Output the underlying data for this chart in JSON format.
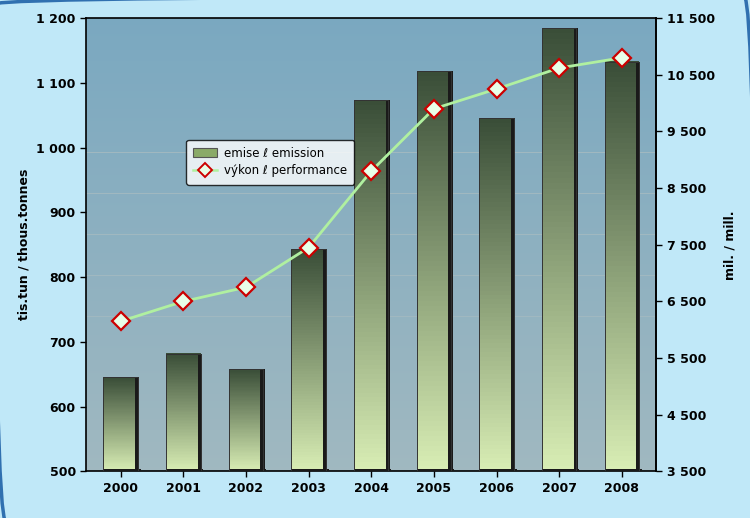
{
  "years": [
    2000,
    2001,
    2002,
    2003,
    2004,
    2005,
    2006,
    2007,
    2008
  ],
  "emissions": [
    645,
    682,
    658,
    843,
    1073,
    1118,
    1045,
    1185,
    1133
  ],
  "performance": [
    6150,
    6500,
    6750,
    7450,
    8800,
    9900,
    10250,
    10620,
    10800
  ],
  "bar_color_top": "#3a4e38",
  "bar_color_bottom": "#d8edb4",
  "line_color": "#b0f0a0",
  "marker_face": "#e8ffe8",
  "marker_edge": "#cc0000",
  "left_ylabel": "tis.tun / thous.tonnes",
  "right_ylabel": "mil. / mill.",
  "left_ylim": [
    500,
    1200
  ],
  "right_ylim": [
    3500,
    11500
  ],
  "left_ytick_vals": [
    500,
    600,
    700,
    800,
    900,
    1000,
    1100,
    1200
  ],
  "left_ytick_labels": [
    "500",
    "600",
    "700",
    "800",
    "900",
    "1 000",
    "1 100",
    "1 200"
  ],
  "right_ytick_vals": [
    3500,
    4500,
    5500,
    6500,
    7500,
    8500,
    9500,
    10500,
    11500
  ],
  "right_ytick_labels": [
    "3 500",
    "4 500",
    "5 500",
    "6 500",
    "7 500",
    "8 500",
    "9 500",
    "10 500",
    "11 500"
  ],
  "background_outer": "#c0e8f8",
  "bg_top_color": "#7aa8c0",
  "bg_bottom_color": "#a0b8c0",
  "legend_labels": [
    "emise ℓ emission",
    "výkon ℓ performance"
  ]
}
